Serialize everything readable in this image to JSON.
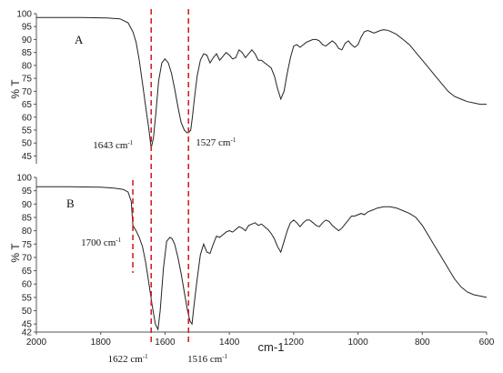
{
  "chart_data": [
    {
      "type": "line",
      "panel_label": "A",
      "ylabel": "% T",
      "xlabel": "",
      "xlim": [
        2000,
        600
      ],
      "ylim": [
        42,
        100
      ],
      "yticks": [
        45,
        50,
        55,
        60,
        65,
        70,
        75,
        80,
        85,
        90,
        95,
        100
      ],
      "xticks": [],
      "series": [
        {
          "x": [
            2000,
            1920,
            1860,
            1780,
            1740,
            1715,
            1700,
            1690,
            1680,
            1670,
            1660,
            1650,
            1643,
            1636,
            1628,
            1620,
            1610,
            1600,
            1590,
            1580,
            1570,
            1560,
            1550,
            1540,
            1532,
            1527,
            1520,
            1515,
            1508,
            1500,
            1490,
            1480,
            1470,
            1460,
            1450,
            1440,
            1430,
            1420,
            1410,
            1400,
            1390,
            1380,
            1370,
            1360,
            1350,
            1340,
            1330,
            1320,
            1310,
            1300,
            1290,
            1280,
            1270,
            1260,
            1250,
            1240,
            1230,
            1220,
            1210,
            1200,
            1190,
            1180,
            1170,
            1160,
            1150,
            1140,
            1130,
            1120,
            1110,
            1100,
            1090,
            1080,
            1070,
            1060,
            1050,
            1040,
            1030,
            1020,
            1010,
            1000,
            990,
            980,
            970,
            960,
            950,
            940,
            930,
            920,
            910,
            900,
            880,
            860,
            840,
            820,
            800,
            780,
            760,
            740,
            720,
            700,
            680,
            660,
            640,
            620,
            600
          ],
          "y": [
            98.5,
            98.5,
            98.5,
            98.3,
            98.0,
            96.5,
            93,
            89,
            82,
            73,
            64,
            55,
            48,
            52,
            62,
            74,
            81,
            82.5,
            81,
            77,
            71,
            64,
            58,
            55,
            54,
            54,
            55,
            60,
            68,
            76,
            82,
            84.5,
            84,
            81,
            83,
            84.5,
            82,
            83.5,
            85,
            84,
            82.5,
            83,
            86,
            85,
            83,
            84.5,
            86,
            84.5,
            82,
            82,
            81,
            80,
            79,
            76,
            71,
            67,
            70,
            77,
            83,
            87.5,
            88,
            87,
            88,
            89,
            89.5,
            90,
            90,
            89.5,
            88,
            87.5,
            88.5,
            89.5,
            88.5,
            86.5,
            86,
            88.5,
            89.5,
            88,
            87,
            88,
            91,
            93,
            93.5,
            93,
            92.5,
            93,
            93.5,
            93.8,
            93.6,
            93.2,
            92,
            90,
            88,
            85,
            82,
            79,
            76,
            73,
            70,
            68,
            67,
            66,
            65.5,
            65,
            65
          ]
        }
      ],
      "annotations": [
        {
          "wavenumber": 1643,
          "text": "1643 cm",
          "superscript": "-1"
        },
        {
          "wavenumber": 1527,
          "text": "1527 cm",
          "superscript": "-1"
        }
      ],
      "dashed_markers": [
        1643,
        1527
      ],
      "marker_color": "#d62020",
      "line_color": "#222222"
    },
    {
      "type": "line",
      "panel_label": "B",
      "ylabel": "% T",
      "xlabel": "cm-1",
      "xlim": [
        2000,
        600
      ],
      "ylim": [
        42,
        100
      ],
      "yticks": [
        42,
        45,
        50,
        55,
        60,
        65,
        70,
        75,
        80,
        85,
        90,
        95,
        100
      ],
      "xticks": [
        2000,
        1800,
        1600,
        1400,
        1200,
        1000,
        800,
        600
      ],
      "series": [
        {
          "x": [
            2000,
            1900,
            1800,
            1760,
            1730,
            1715,
            1705,
            1700,
            1690,
            1680,
            1670,
            1660,
            1650,
            1640,
            1630,
            1622,
            1615,
            1605,
            1595,
            1585,
            1578,
            1570,
            1560,
            1550,
            1540,
            1530,
            1522,
            1516,
            1510,
            1500,
            1490,
            1480,
            1470,
            1460,
            1450,
            1440,
            1430,
            1420,
            1410,
            1400,
            1390,
            1380,
            1370,
            1360,
            1350,
            1340,
            1330,
            1320,
            1310,
            1300,
            1290,
            1280,
            1270,
            1260,
            1250,
            1240,
            1230,
            1220,
            1210,
            1200,
            1190,
            1180,
            1170,
            1160,
            1150,
            1140,
            1130,
            1120,
            1110,
            1100,
            1090,
            1080,
            1070,
            1060,
            1050,
            1040,
            1030,
            1020,
            1010,
            1000,
            990,
            980,
            970,
            960,
            950,
            940,
            920,
            900,
            880,
            860,
            840,
            820,
            800,
            780,
            760,
            740,
            720,
            700,
            680,
            660,
            640,
            620,
            600
          ],
          "y": [
            96.5,
            96.5,
            96.3,
            96.0,
            95.5,
            94.5,
            91,
            82,
            80,
            77.5,
            74,
            68,
            60,
            52,
            45,
            43,
            50,
            66,
            76,
            77.5,
            77,
            75,
            70,
            64,
            57,
            50,
            46,
            45,
            52,
            62,
            71,
            75,
            72,
            71.5,
            75,
            78,
            77.5,
            78.5,
            79.5,
            80,
            79.5,
            80.5,
            81.5,
            81,
            80,
            82,
            82.5,
            83,
            82,
            82.5,
            81.5,
            80.5,
            79,
            77,
            74,
            72,
            76,
            80,
            83,
            84,
            83,
            81.5,
            83,
            84,
            84,
            83,
            82,
            81.5,
            83,
            84,
            83.5,
            82,
            81,
            80,
            81,
            82.5,
            84,
            85.5,
            85.5,
            86,
            86.5,
            86,
            87,
            87.5,
            88,
            88.5,
            89,
            89,
            88.5,
            87.5,
            86.5,
            85,
            82,
            78,
            74,
            70,
            66,
            62,
            59,
            57,
            56,
            55.5,
            55
          ]
        }
      ],
      "annotations": [
        {
          "wavenumber": 1700,
          "text": "1700 cm",
          "superscript": "-1"
        },
        {
          "wavenumber": 1622,
          "text": "1622 cm",
          "superscript": "-1"
        },
        {
          "wavenumber": 1516,
          "text": "1516 cm",
          "superscript": "-1"
        }
      ],
      "dashed_markers": [
        1700,
        1643,
        1527
      ],
      "marker_color": "#d62020",
      "line_color": "#222222"
    }
  ]
}
